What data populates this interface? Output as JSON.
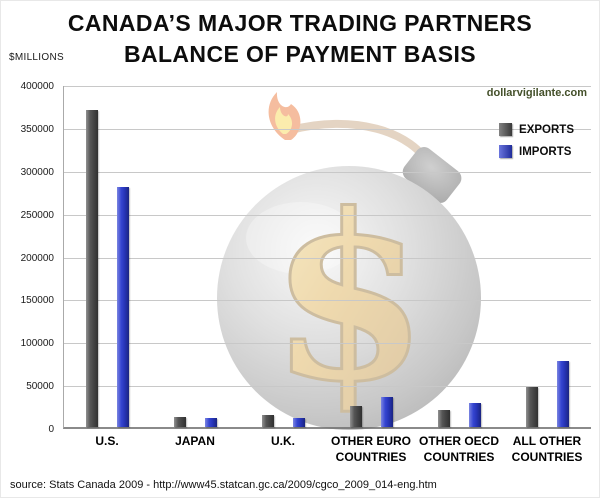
{
  "header": {
    "title_line1": "CANADA’S MAJOR TRADING PARTNERS",
    "title_line2": "BALANCE OF PAYMENT BASIS",
    "site": "dollarvigilante.com"
  },
  "footer": {
    "source": "source: Stats Canada 2009 - http://www45.statcan.gc.ca/2009/cgco_2009_014-eng.htm"
  },
  "watermark": {
    "icon": "bomb-with-dollar-sign-icon"
  },
  "chart_data": {
    "type": "bar",
    "title": "CANADA’S MAJOR TRADING PARTNERS — BALANCE OF PAYMENT BASIS",
    "ylabel": "$MILLIONS",
    "xlabel": "",
    "categories": [
      "U.S.",
      "JAPAN",
      "U.K.",
      "OTHER EURO COUNTRIES",
      "OTHER OECD COUNTRIES",
      "ALL OTHER COUNTRIES"
    ],
    "series": [
      {
        "name": "EXPORTS",
        "color": "#4d4d4d",
        "values": [
          370000,
          12000,
          14000,
          25000,
          20000,
          47000
        ]
      },
      {
        "name": "IMPORTS",
        "color": "#2b3bcf",
        "values": [
          280000,
          11000,
          11000,
          35000,
          28000,
          77000
        ]
      }
    ],
    "ylim": [
      0,
      400000
    ],
    "ytick_step": 50000,
    "grid": true,
    "legend_position": "top-right"
  }
}
